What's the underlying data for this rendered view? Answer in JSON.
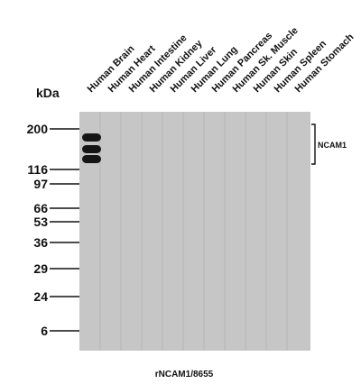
{
  "blot": {
    "kda_label": "kDa",
    "caption": "rNCAM1/8655",
    "protein_label": "NCAM1",
    "lanes": [
      "Human Brain",
      "Human Heart",
      "Human Intestine",
      "Human Kidney",
      "Human Liver",
      "Human Lung",
      "Human Pancreas",
      "Human Sk. Muscle",
      "Human Skin",
      "Human Spleen",
      "Human Stomach"
    ],
    "markers": [
      "200",
      "116",
      "97",
      "66",
      "53",
      "36",
      "29",
      "24",
      "6"
    ],
    "band_lane": "Human Brain",
    "colors": {
      "membrane": "#c6c6c6",
      "lane_separator": "#b6b6b6",
      "band": "#151515",
      "marker_line": "#111111"
    }
  }
}
